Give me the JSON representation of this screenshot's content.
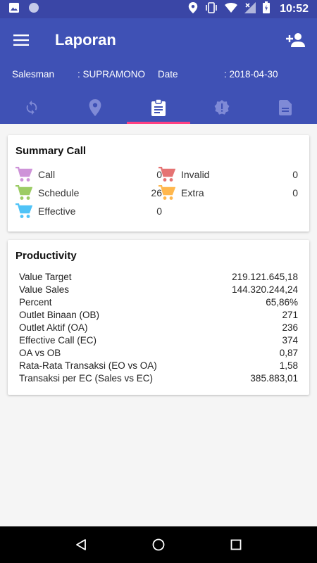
{
  "status_bar": {
    "time": "10:52",
    "icons": [
      "image-icon",
      "circle-icon",
      "location-icon",
      "vibrate-icon",
      "wifi-icon",
      "signal-icon",
      "battery-icon"
    ]
  },
  "appbar": {
    "title": "Laporan",
    "salesman_label": "Salesman",
    "salesman_value": ": SUPRAMONO",
    "date_label": "Date",
    "date_value": ": 2018-04-30",
    "tabs": [
      {
        "icon": "sync-icon",
        "active": false
      },
      {
        "icon": "location-icon",
        "active": false
      },
      {
        "icon": "clipboard-icon",
        "active": true
      },
      {
        "icon": "alert-badge-icon",
        "active": false
      },
      {
        "icon": "document-icon",
        "active": false
      }
    ],
    "accent": "#ff4081",
    "primary": "#3f51b5"
  },
  "summary_call": {
    "title": "Summary Call",
    "items": [
      {
        "label": "Call",
        "value": "0",
        "color": "#ce93d8"
      },
      {
        "label": "Invalid",
        "value": "0",
        "color": "#e57373"
      },
      {
        "label": "Schedule",
        "value": "26",
        "color": "#9ccc65"
      },
      {
        "label": "Extra",
        "value": "0",
        "color": "#ffb74d"
      },
      {
        "label": "Effective",
        "value": "0",
        "color": "#4fc3f7"
      }
    ]
  },
  "productivity": {
    "title": "Productivity",
    "rows": [
      {
        "key": "Value Target",
        "value": "219.121.645,18"
      },
      {
        "key": "Value Sales",
        "value": "144.320.244,24"
      },
      {
        "key": "Percent",
        "value": "65,86%"
      },
      {
        "key": "Outlet Binaan (OB)",
        "value": "271"
      },
      {
        "key": "Outlet Aktif (OA)",
        "value": "236"
      },
      {
        "key": "Effective Call (EC)",
        "value": "374"
      },
      {
        "key": "OA vs OB",
        "value": "0,87"
      },
      {
        "key": "Rata-Rata Transaksi (EO vs OA)",
        "value": "1,58"
      },
      {
        "key": "Transaksi per EC (Sales vs EC)",
        "value": "385.883,01"
      }
    ]
  },
  "navbar": {
    "buttons": [
      "back-icon",
      "home-icon",
      "recents-icon"
    ]
  }
}
